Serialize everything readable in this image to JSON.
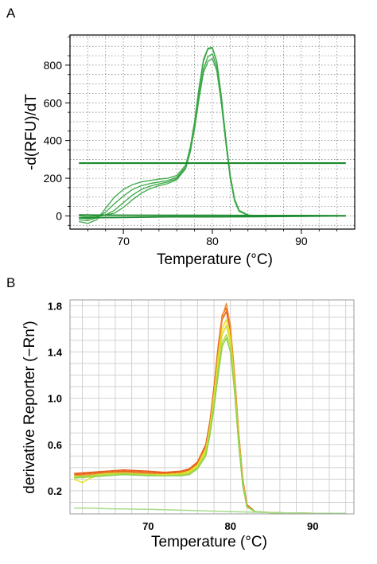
{
  "panel_labels": {
    "a": "A",
    "b": "B"
  },
  "chart_data": [
    {
      "type": "line",
      "panel": "A",
      "xlabel": "Temperature  (°C)",
      "ylabel": "-d(RFU)/dT",
      "xlim": [
        64,
        96
      ],
      "ylim": [
        -70,
        960
      ],
      "xticks": [
        70,
        80,
        90
      ],
      "yticks": [
        0,
        200,
        400,
        600,
        800
      ],
      "tick_labels_x": [
        "70",
        "80",
        "90"
      ],
      "tick_labels_y": [
        "0",
        "200",
        "400",
        "600",
        "800"
      ],
      "grid": "dotted",
      "colors": {
        "curve": "#3aa845",
        "dark": "#1e8c30",
        "threshold": "#1b8a2e"
      },
      "threshold": 280,
      "series": [
        {
          "x": [
            65,
            66,
            67,
            68,
            69,
            70,
            71,
            72,
            73,
            74,
            75,
            76,
            77,
            77.5,
            78,
            78.5,
            79,
            79.5,
            80,
            80.5,
            81,
            81.5,
            82,
            82.5,
            83,
            84,
            85,
            86,
            88,
            90,
            92,
            95
          ],
          "y": [
            -30,
            -40,
            -20,
            40,
            100,
            140,
            165,
            180,
            188,
            195,
            200,
            215,
            270,
            360,
            500,
            680,
            830,
            890,
            895,
            820,
            640,
            420,
            220,
            90,
            30,
            5,
            0,
            0,
            0,
            0,
            0,
            0
          ]
        },
        {
          "x": [
            65,
            66,
            67,
            68,
            69,
            70,
            71,
            72,
            73,
            74,
            75,
            76,
            77,
            77.5,
            78,
            78.5,
            79,
            79.5,
            80,
            80.5,
            81,
            81.5,
            82,
            82.5,
            83,
            84,
            85,
            86,
            88,
            90,
            92,
            95
          ],
          "y": [
            -20,
            -25,
            -10,
            20,
            65,
            105,
            140,
            160,
            172,
            180,
            188,
            205,
            260,
            350,
            490,
            670,
            820,
            885,
            890,
            815,
            630,
            410,
            210,
            85,
            28,
            4,
            0,
            0,
            0,
            0,
            0,
            0
          ]
        },
        {
          "x": [
            65,
            66,
            67,
            68,
            69,
            70,
            71,
            72,
            73,
            74,
            75,
            76,
            77,
            77.5,
            78,
            78.5,
            79,
            79.5,
            80,
            80.5,
            81,
            81.5,
            82,
            82.5,
            83,
            84,
            85,
            86,
            88,
            90,
            92,
            95
          ],
          "y": [
            -10,
            -15,
            -5,
            5,
            30,
            70,
            110,
            140,
            158,
            170,
            180,
            198,
            255,
            340,
            470,
            640,
            780,
            845,
            860,
            790,
            610,
            400,
            205,
            80,
            25,
            3,
            0,
            0,
            0,
            0,
            0,
            0
          ]
        },
        {
          "x": [
            65,
            66,
            67,
            68,
            69,
            70,
            71,
            72,
            73,
            74,
            75,
            76,
            77,
            77.5,
            78,
            78.5,
            79,
            79.5,
            80,
            80.5,
            81,
            81.5,
            82,
            82.5,
            83,
            84,
            85,
            86,
            88,
            90,
            92,
            95
          ],
          "y": [
            0,
            -5,
            0,
            5,
            15,
            45,
            85,
            120,
            145,
            160,
            172,
            192,
            250,
            335,
            460,
            620,
            760,
            820,
            835,
            770,
            600,
            390,
            200,
            78,
            24,
            3,
            0,
            0,
            0,
            0,
            0,
            0
          ]
        },
        {
          "x": [
            65,
            70,
            75,
            80,
            85,
            90,
            95
          ],
          "y": [
            -10,
            -8,
            -5,
            -5,
            -4,
            -2,
            0
          ]
        },
        {
          "x": [
            65,
            70,
            75,
            80,
            85,
            90,
            95
          ],
          "y": [
            5,
            4,
            3,
            3,
            2,
            2,
            1
          ]
        }
      ]
    },
    {
      "type": "line",
      "panel": "B",
      "xlabel": "Temperature (°C)",
      "ylabel": "derivative Reporter (−Rn′)",
      "xlim": [
        60.5,
        95
      ],
      "ylim": [
        0,
        1.85
      ],
      "xticks": [
        70,
        80,
        90
      ],
      "yticks": [
        0.2,
        0.6,
        1.0,
        1.4,
        1.8
      ],
      "tick_labels_x": [
        "70",
        "80",
        "90"
      ],
      "tick_labels_y": [
        "0.2",
        "0.6",
        "1.0",
        "1.4",
        "1.8"
      ],
      "grid": "solid",
      "colors": {
        "orange": "#e8601c",
        "yellow": "#e8e020",
        "green": "#6cc040",
        "lightgreen": "#a6dc8c"
      },
      "series": [
        {
          "color": "#e8601c",
          "x": [
            61,
            63,
            65,
            67,
            70,
            72,
            74,
            75,
            76,
            77,
            77.5,
            78,
            78.5,
            79,
            79.5,
            80,
            80.5,
            81,
            81.5,
            82,
            83,
            85,
            90,
            94
          ],
          "y": [
            0.35,
            0.36,
            0.37,
            0.38,
            0.37,
            0.36,
            0.37,
            0.39,
            0.45,
            0.6,
            0.8,
            1.1,
            1.45,
            1.72,
            1.78,
            1.6,
            1.2,
            0.7,
            0.3,
            0.08,
            0.02,
            0.01,
            0.005,
            0.005
          ]
        },
        {
          "color": "#e8601c",
          "x": [
            61,
            63,
            65,
            67,
            70,
            72,
            74,
            75,
            76,
            77,
            77.5,
            78,
            78.5,
            79,
            79.5,
            80,
            80.5,
            81,
            81.5,
            82,
            83,
            85,
            90,
            94
          ],
          "y": [
            0.34,
            0.35,
            0.36,
            0.37,
            0.36,
            0.35,
            0.36,
            0.38,
            0.44,
            0.58,
            0.78,
            1.08,
            1.42,
            1.68,
            1.75,
            1.58,
            1.18,
            0.68,
            0.28,
            0.07,
            0.02,
            0.01,
            0.005,
            0.005
          ]
        },
        {
          "color": "#f09030",
          "x": [
            61,
            63,
            65,
            67,
            70,
            72,
            74,
            75,
            76,
            77,
            77.5,
            78,
            78.5,
            79,
            79.5,
            80,
            80.5,
            81,
            81.5,
            82,
            83,
            85,
            90,
            94
          ],
          "y": [
            0.33,
            0.34,
            0.35,
            0.36,
            0.35,
            0.34,
            0.35,
            0.37,
            0.43,
            0.57,
            0.76,
            1.05,
            1.4,
            1.7,
            1.82,
            1.62,
            1.2,
            0.7,
            0.28,
            0.07,
            0.02,
            0.01,
            0.005,
            0.005
          ]
        },
        {
          "color": "#e8e020",
          "x": [
            61,
            62,
            63,
            64,
            65,
            67,
            70,
            72,
            74,
            75,
            76,
            77,
            77.5,
            78,
            78.5,
            79,
            79.5,
            80,
            80.5,
            81,
            81.5,
            82,
            83,
            85,
            90,
            94
          ],
          "y": [
            0.3,
            0.27,
            0.31,
            0.33,
            0.34,
            0.35,
            0.34,
            0.34,
            0.35,
            0.37,
            0.42,
            0.56,
            0.74,
            1.02,
            1.35,
            1.6,
            1.68,
            1.52,
            1.12,
            0.64,
            0.26,
            0.06,
            0.02,
            0.01,
            0.005,
            0.005
          ]
        },
        {
          "color": "#d8e030",
          "x": [
            61,
            62,
            63,
            64,
            65,
            67,
            70,
            72,
            74,
            75,
            76,
            77,
            77.5,
            78,
            78.5,
            79,
            79.5,
            80,
            80.5,
            81,
            81.5,
            82,
            83,
            85,
            90,
            94
          ],
          "y": [
            0.33,
            0.31,
            0.33,
            0.34,
            0.35,
            0.35,
            0.34,
            0.33,
            0.34,
            0.36,
            0.41,
            0.54,
            0.72,
            0.98,
            1.3,
            1.55,
            1.63,
            1.48,
            1.1,
            0.63,
            0.25,
            0.06,
            0.02,
            0.01,
            0.005,
            0.005
          ]
        },
        {
          "color": "#b4dc40",
          "x": [
            61,
            63,
            65,
            67,
            70,
            72,
            74,
            75,
            76,
            77,
            77.5,
            78,
            78.5,
            79,
            79.5,
            80,
            80.5,
            81,
            81.5,
            82,
            83,
            85,
            90,
            94
          ],
          "y": [
            0.32,
            0.33,
            0.34,
            0.35,
            0.34,
            0.33,
            0.34,
            0.35,
            0.4,
            0.52,
            0.7,
            0.95,
            1.25,
            1.48,
            1.55,
            1.45,
            1.08,
            0.62,
            0.25,
            0.06,
            0.02,
            0.01,
            0.005,
            0.005
          ]
        },
        {
          "color": "#8cd050",
          "x": [
            61,
            63,
            65,
            67,
            70,
            72,
            74,
            75,
            76,
            77,
            77.5,
            78,
            78.5,
            79,
            79.5,
            80,
            80.5,
            81,
            81.5,
            82,
            83,
            85,
            90,
            94
          ],
          "y": [
            0.31,
            0.32,
            0.33,
            0.34,
            0.33,
            0.33,
            0.33,
            0.34,
            0.39,
            0.5,
            0.68,
            0.92,
            1.2,
            1.45,
            1.52,
            1.4,
            1.05,
            0.6,
            0.24,
            0.06,
            0.02,
            0.01,
            0.005,
            0.005
          ]
        },
        {
          "color": "#a6dc8c",
          "x": [
            61,
            63,
            65,
            70,
            75,
            80,
            85,
            90,
            94
          ],
          "y": [
            0.05,
            0.05,
            0.045,
            0.04,
            0.03,
            0.02,
            0.01,
            0.005,
            0.005
          ]
        }
      ]
    }
  ]
}
